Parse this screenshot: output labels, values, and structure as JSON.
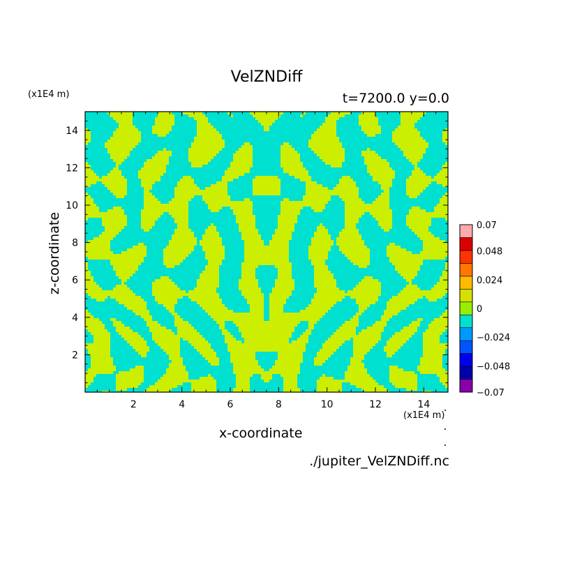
{
  "chart_data": {
    "type": "heatmap",
    "title": "VelZNDiff",
    "subtitle": "t=7200.0 y=0.0",
    "xlabel": "x-coordinate",
    "ylabel": "z-coordinate",
    "x_unit": "(x1E4 m)",
    "z_unit": "(x1E4 m)",
    "source_label": "./jupiter_VelZNDiff.nc",
    "xlim": [
      0,
      15
    ],
    "ylim": [
      0,
      15
    ],
    "x_ticks": [
      2,
      4,
      6,
      8,
      10,
      12,
      14
    ],
    "x_tick_labels": [
      "2",
      "4",
      "6",
      "8",
      "10",
      "12",
      "14"
    ],
    "y_ticks": [
      2,
      4,
      6,
      8,
      10,
      12,
      14
    ],
    "y_tick_labels": [
      "2",
      "4",
      "6",
      "8",
      "10",
      "12",
      "14"
    ],
    "colorbar": {
      "levels": [
        -0.07,
        -0.056,
        -0.048,
        -0.032,
        -0.024,
        -0.008,
        0,
        0.008,
        0.024,
        0.032,
        0.048,
        0.056,
        0.07
      ],
      "tick_values": [
        0.07,
        0.048,
        0.024,
        0,
        -0.024,
        -0.048,
        -0.07
      ],
      "tick_labels": [
        "0.07",
        "0.048",
        "0.024",
        "0",
        "−0.024",
        "−0.048",
        "−0.07"
      ],
      "colors": [
        "#8800aa",
        "#0000aa",
        "#0000ee",
        "#0055ff",
        "#0099ff",
        "#00e0d0",
        "#99ee00",
        "#d6e000",
        "#ffbb00",
        "#ff7700",
        "#ff3300",
        "#dd0000",
        "#ffaaaa"
      ]
    },
    "field_colors": {
      "negative": "#00e0d0",
      "positive": "#ccee00"
    },
    "symmetry": "mirror about x=7.5"
  }
}
